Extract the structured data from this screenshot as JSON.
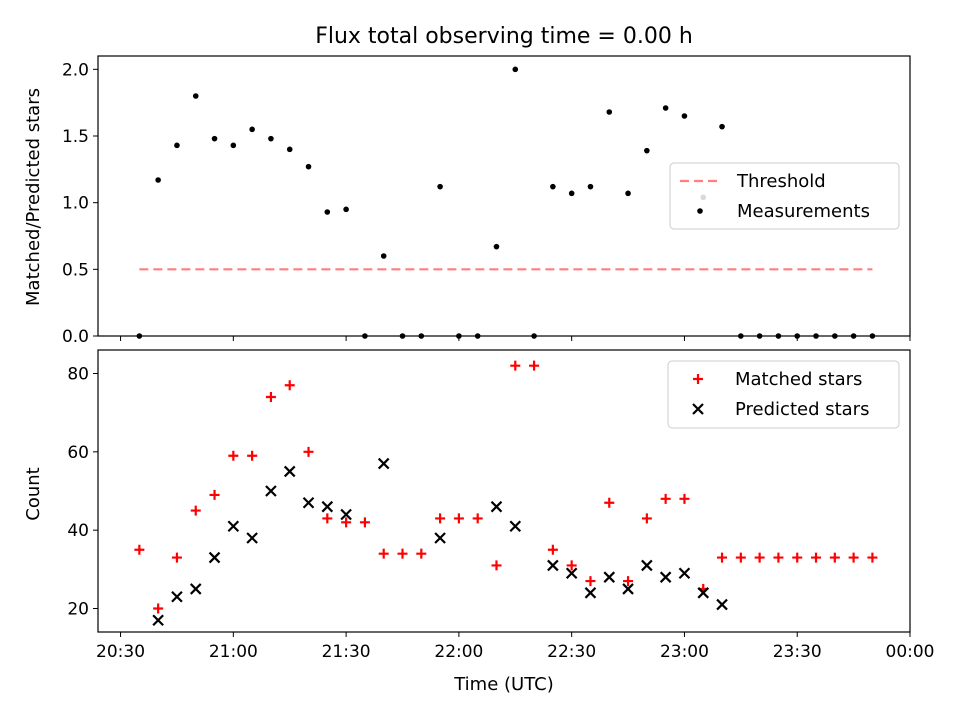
{
  "figure": {
    "title": "Flux total observing time = 0.00 h",
    "xlabel": "Time (UTC)"
  },
  "x_ticks": [
    "20:30",
    "21:00",
    "21:30",
    "22:00",
    "22:30",
    "23:00",
    "23:30",
    "00:00"
  ],
  "chart_data": [
    {
      "type": "scatter",
      "panel": "top",
      "ylabel": "Matched/Predicted stars",
      "ylim": [
        0,
        2.1
      ],
      "y_ticks": [
        "0.0",
        "0.5",
        "1.0",
        "1.5",
        "2.0"
      ],
      "grid": false,
      "legend_position": "center-right",
      "threshold": {
        "name": "Threshold",
        "value": 0.5,
        "x_start": "20:35",
        "x_end": "23:50",
        "color": "#ff7f7f",
        "style": "dashed"
      },
      "series": [
        {
          "name": "Measurements",
          "marker": "dot",
          "color": "#000000",
          "points": [
            [
              "20:35",
              0.0
            ],
            [
              "20:40",
              1.17
            ],
            [
              "20:45",
              1.43
            ],
            [
              "20:50",
              1.8
            ],
            [
              "20:55",
              1.48
            ],
            [
              "21:00",
              1.43
            ],
            [
              "21:05",
              1.55
            ],
            [
              "21:10",
              1.48
            ],
            [
              "21:15",
              1.4
            ],
            [
              "21:20",
              1.27
            ],
            [
              "21:25",
              0.93
            ],
            [
              "21:30",
              0.95
            ],
            [
              "21:35",
              0.0
            ],
            [
              "21:40",
              0.6
            ],
            [
              "21:45",
              0.0
            ],
            [
              "21:50",
              0.0
            ],
            [
              "21:55",
              1.12
            ],
            [
              "22:00",
              0.0
            ],
            [
              "22:05",
              0.0
            ],
            [
              "22:10",
              0.67
            ],
            [
              "22:15",
              2.0
            ],
            [
              "22:20",
              0.0
            ],
            [
              "22:25",
              1.12
            ],
            [
              "22:30",
              1.07
            ],
            [
              "22:35",
              1.12
            ],
            [
              "22:40",
              1.68
            ],
            [
              "22:45",
              1.07
            ],
            [
              "22:50",
              1.39
            ],
            [
              "22:55",
              1.71
            ],
            [
              "23:00",
              1.65
            ],
            [
              "23:05",
              1.04
            ],
            [
              "23:10",
              1.57
            ],
            [
              "23:15",
              0.0
            ],
            [
              "23:20",
              0.0
            ],
            [
              "23:25",
              0.0
            ],
            [
              "23:30",
              0.0
            ],
            [
              "23:35",
              0.0
            ],
            [
              "23:40",
              0.0
            ],
            [
              "23:45",
              0.0
            ],
            [
              "23:50",
              0.0
            ]
          ]
        }
      ]
    },
    {
      "type": "scatter",
      "panel": "bottom",
      "ylabel": "Count",
      "ylim": [
        14,
        86
      ],
      "y_ticks": [
        "20",
        "40",
        "60",
        "80"
      ],
      "grid": false,
      "legend_position": "top-right",
      "series": [
        {
          "name": "Matched stars",
          "marker": "plus",
          "color": "#ff0000",
          "points": [
            [
              "20:35",
              35
            ],
            [
              "20:40",
              20
            ],
            [
              "20:45",
              33
            ],
            [
              "20:50",
              45
            ],
            [
              "20:55",
              49
            ],
            [
              "21:00",
              59
            ],
            [
              "21:05",
              59
            ],
            [
              "21:10",
              74
            ],
            [
              "21:15",
              77
            ],
            [
              "21:20",
              60
            ],
            [
              "21:25",
              43
            ],
            [
              "21:30",
              42
            ],
            [
              "21:35",
              42
            ],
            [
              "21:40",
              34
            ],
            [
              "21:45",
              34
            ],
            [
              "21:50",
              34
            ],
            [
              "21:55",
              43
            ],
            [
              "22:00",
              43
            ],
            [
              "22:05",
              43
            ],
            [
              "22:10",
              31
            ],
            [
              "22:15",
              82
            ],
            [
              "22:20",
              82
            ],
            [
              "22:25",
              35
            ],
            [
              "22:30",
              31
            ],
            [
              "22:35",
              27
            ],
            [
              "22:40",
              47
            ],
            [
              "22:45",
              27
            ],
            [
              "22:50",
              43
            ],
            [
              "22:55",
              48
            ],
            [
              "23:00",
              48
            ],
            [
              "23:05",
              25
            ],
            [
              "23:10",
              33
            ],
            [
              "23:15",
              33
            ],
            [
              "23:20",
              33
            ],
            [
              "23:25",
              33
            ],
            [
              "23:30",
              33
            ],
            [
              "23:35",
              33
            ],
            [
              "23:40",
              33
            ],
            [
              "23:45",
              33
            ],
            [
              "23:50",
              33
            ]
          ]
        },
        {
          "name": "Predicted stars",
          "marker": "x",
          "color": "#000000",
          "points": [
            [
              "20:40",
              17
            ],
            [
              "20:45",
              23
            ],
            [
              "20:50",
              25
            ],
            [
              "20:55",
              33
            ],
            [
              "21:00",
              41
            ],
            [
              "21:05",
              38
            ],
            [
              "21:10",
              50
            ],
            [
              "21:15",
              55
            ],
            [
              "21:20",
              47
            ],
            [
              "21:25",
              46
            ],
            [
              "21:30",
              44
            ],
            [
              "21:40",
              57
            ],
            [
              "21:55",
              38
            ],
            [
              "22:10",
              46
            ],
            [
              "22:15",
              41
            ],
            [
              "22:25",
              31
            ],
            [
              "22:30",
              29
            ],
            [
              "22:35",
              24
            ],
            [
              "22:40",
              28
            ],
            [
              "22:45",
              25
            ],
            [
              "22:50",
              31
            ],
            [
              "22:55",
              28
            ],
            [
              "23:00",
              29
            ],
            [
              "23:05",
              24
            ],
            [
              "23:10",
              21
            ]
          ]
        }
      ]
    }
  ]
}
